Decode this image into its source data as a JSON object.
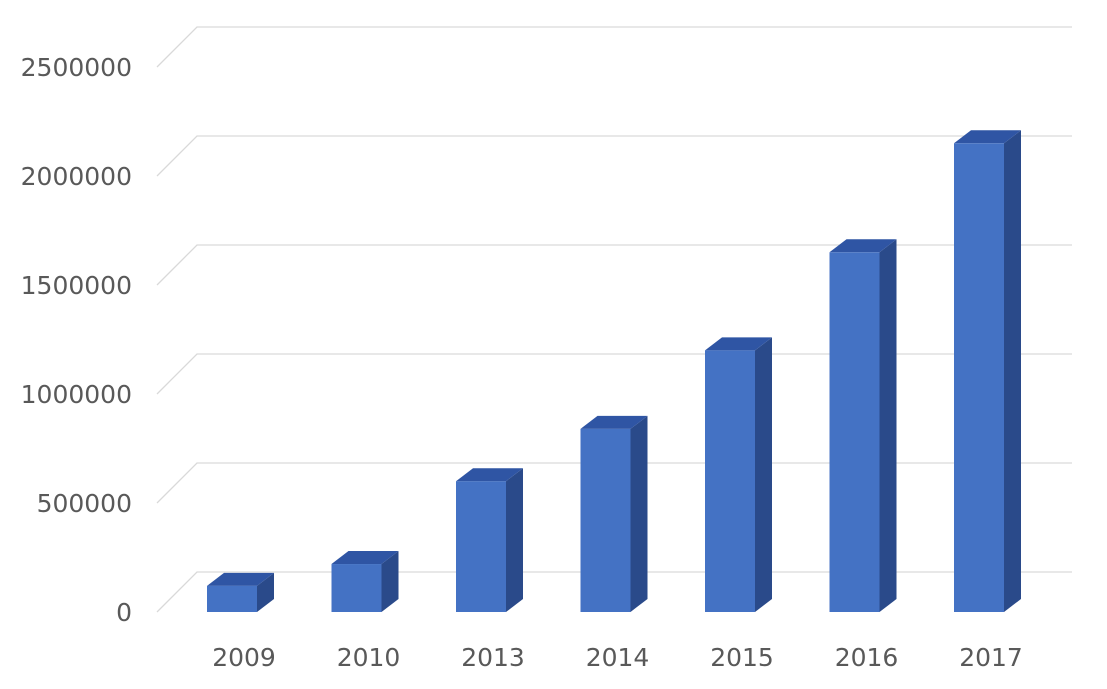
{
  "chart_data": {
    "type": "bar",
    "title": "",
    "xlabel": "",
    "ylabel": "",
    "categories": [
      "2009",
      "2010",
      "2013",
      "2014",
      "2015",
      "2016",
      "2017"
    ],
    "values": [
      120000,
      220000,
      600000,
      840000,
      1200000,
      1650000,
      2150000
    ],
    "ylim": [
      0,
      2500000
    ],
    "yticks": [
      "0",
      "500000",
      "1000000",
      "1500000",
      "2000000",
      "2500000"
    ],
    "grid": true,
    "legend": "none",
    "style": "3d-clustered-column",
    "colors": {
      "front": "#4472C4",
      "top": "#2F55A4",
      "side": "#2A4A8A"
    }
  }
}
